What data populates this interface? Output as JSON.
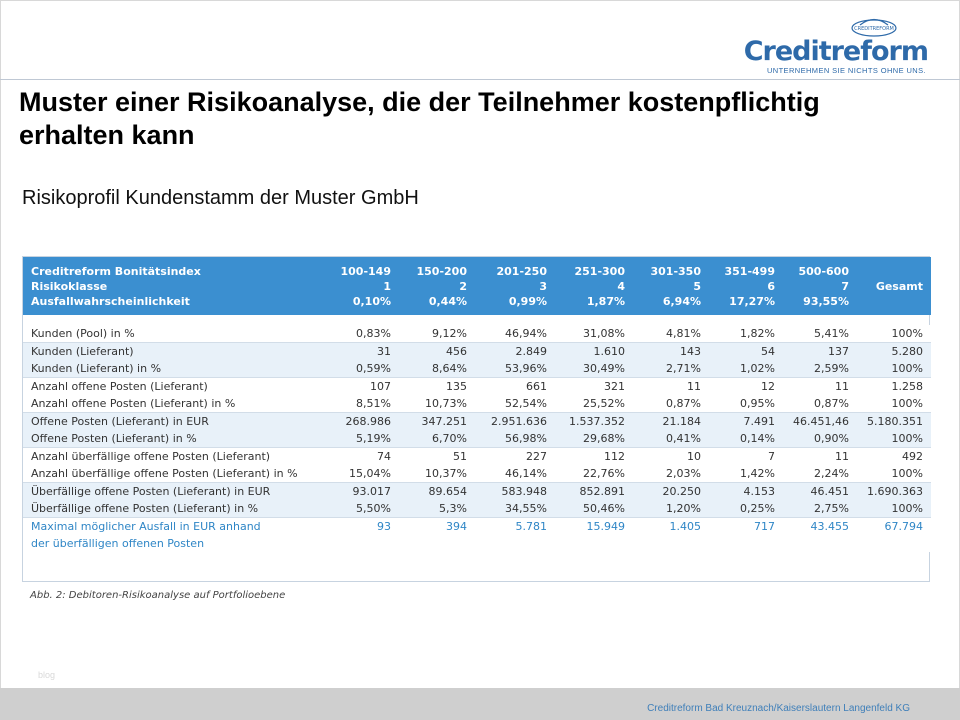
{
  "logo": {
    "badge": "CREDITREFORM",
    "wordmark": "Creditreform",
    "tagline": "UNTERNEHMEN SIE NICHTS OHNE UNS."
  },
  "title": "Muster einer Risikoanalyse, die der Teilnehmer kostenpflichtig erhalten kann",
  "subtitle": "Risikoprofil Kundenstamm der Muster GmbH",
  "table": {
    "header_labels": [
      "Creditreform Bonitätsindex",
      "Risikoklasse",
      "Ausfallwahrscheinlichkeit"
    ],
    "columns": [
      {
        "index": "100-149",
        "class": "1",
        "prob": "0,10%"
      },
      {
        "index": "150-200",
        "class": "2",
        "prob": "0,44%"
      },
      {
        "index": "201-250",
        "class": "3",
        "prob": "0,99%"
      },
      {
        "index": "251-300",
        "class": "4",
        "prob": "1,87%"
      },
      {
        "index": "301-350",
        "class": "5",
        "prob": "6,94%"
      },
      {
        "index": "351-499",
        "class": "6",
        "prob": "17,27%"
      },
      {
        "index": "500-600",
        "class": "7",
        "prob": "93,55%"
      }
    ],
    "total_label": "Gesamt",
    "groups": [
      {
        "rows": [
          {
            "label": "Kunden (Pool) in %",
            "values": [
              "0,83%",
              "9,12%",
              "46,94%",
              "31,08%",
              "4,81%",
              "1,82%",
              "5,41%",
              "100%"
            ]
          }
        ]
      },
      {
        "rows": [
          {
            "label": "Kunden (Lieferant)",
            "values": [
              "31",
              "456",
              "2.849",
              "1.610",
              "143",
              "54",
              "137",
              "5.280"
            ]
          },
          {
            "label": "Kunden (Lieferant) in %",
            "values": [
              "0,59%",
              "8,64%",
              "53,96%",
              "30,49%",
              "2,71%",
              "1,02%",
              "2,59%",
              "100%"
            ]
          }
        ]
      },
      {
        "rows": [
          {
            "label": "Anzahl offene Posten (Lieferant)",
            "values": [
              "107",
              "135",
              "661",
              "321",
              "11",
              "12",
              "11",
              "1.258"
            ]
          },
          {
            "label": "Anzahl offene Posten (Lieferant) in %",
            "values": [
              "8,51%",
              "10,73%",
              "52,54%",
              "25,52%",
              "0,87%",
              "0,95%",
              "0,87%",
              "100%"
            ]
          }
        ]
      },
      {
        "rows": [
          {
            "label": "Offene Posten (Lieferant) in EUR",
            "values": [
              "268.986",
              "347.251",
              "2.951.636",
              "1.537.352",
              "21.184",
              "7.491",
              "46.451,46",
              "5.180.351"
            ]
          },
          {
            "label": "Offene Posten (Lieferant) in %",
            "values": [
              "5,19%",
              "6,70%",
              "56,98%",
              "29,68%",
              "0,41%",
              "0,14%",
              "0,90%",
              "100%"
            ]
          }
        ]
      },
      {
        "rows": [
          {
            "label": "Anzahl überfällige offene Posten (Lieferant)",
            "values": [
              "74",
              "51",
              "227",
              "112",
              "10",
              "7",
              "11",
              "492"
            ]
          },
          {
            "label": "Anzahl überfällige offene Posten (Lieferant) in %",
            "values": [
              "15,04%",
              "10,37%",
              "46,14%",
              "22,76%",
              "2,03%",
              "1,42%",
              "2,24%",
              "100%"
            ]
          }
        ]
      },
      {
        "rows": [
          {
            "label": "Überfällige offene Posten (Lieferant) in EUR",
            "values": [
              "93.017",
              "89.654",
              "583.948",
              "852.891",
              "20.250",
              "4.153",
              "46.451",
              "1.690.363"
            ]
          },
          {
            "label": "Überfällige offene Posten (Lieferant) in %",
            "values": [
              "5,50%",
              "5,3%",
              "34,55%",
              "50,46%",
              "1,20%",
              "0,25%",
              "2,75%",
              "100%"
            ]
          }
        ]
      },
      {
        "highlight": true,
        "rows": [
          {
            "label": "Maximal möglicher Ausfall in EUR anhand",
            "values": [
              "93",
              "394",
              "5.781",
              "15.949",
              "1.405",
              "717",
              "43.455",
              "67.794"
            ]
          },
          {
            "label": "der überfälligen offenen Posten",
            "values": [
              "",
              "",
              "",
              "",
              "",
              "",
              "",
              ""
            ]
          }
        ]
      }
    ]
  },
  "caption": "Abb. 2: Debitoren-Risikoanalyse auf Portfolioebene",
  "blog_mark": "blog",
  "footer": "Creditreform Bad Kreuznach/Kaiserslautern Langenfeld KG"
}
